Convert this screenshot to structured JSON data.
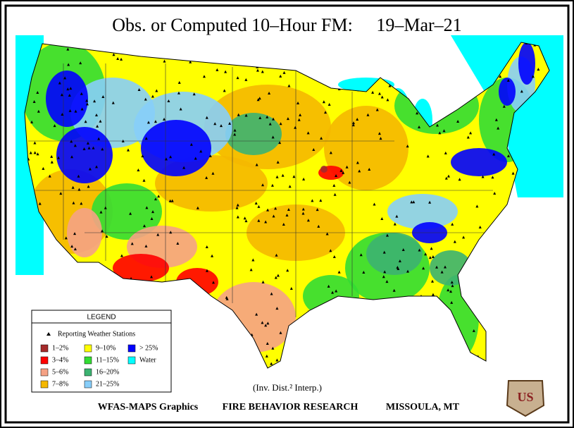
{
  "header": {
    "title": "Obs. or Computed 10–Hour FM:",
    "date": "19–Mar–21"
  },
  "legend": {
    "title": "LEGEND",
    "stations": "Reporting Weather Stations",
    "items": [
      {
        "label": "1–2%",
        "color": "#a52a2a"
      },
      {
        "label": "3–4%",
        "color": "#ff0000"
      },
      {
        "label": "5–6%",
        "color": "#f5a285"
      },
      {
        "label": "7–8%",
        "color": "#f5b800"
      },
      {
        "label": "9–10%",
        "color": "#ffff00"
      },
      {
        "label": "11–15%",
        "color": "#33dd33"
      },
      {
        "label": "16–20%",
        "color": "#3cb371"
      },
      {
        "label": "21–25%",
        "color": "#87cefa"
      },
      {
        "label": "> 25%",
        "color": "#0000ff"
      },
      {
        "label": "Water",
        "color": "#00ffff"
      }
    ]
  },
  "note": "(Inv. Dist.² Interp.)",
  "footer": [
    "WFAS-MAPS Graphics",
    "FIRE BEHAVIOR RESEARCH",
    "MISSOULA, MT"
  ],
  "logo": "US"
}
